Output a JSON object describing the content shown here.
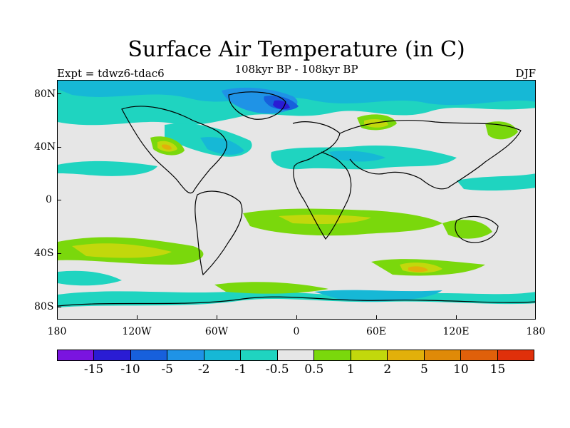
{
  "title": "Surface Air Temperature (in C)",
  "subtitle": "108kyr BP - 108kyr BP",
  "experiment": "Expt = tdwz6-tdac6",
  "season": "DJF",
  "lat_labels": [
    "80N",
    "40N",
    "0",
    "40S",
    "80S"
  ],
  "lon_labels": [
    "180",
    "120W",
    "60W",
    "0",
    "60E",
    "120E",
    "180"
  ],
  "colorbar": {
    "colors": [
      "#7a14e0",
      "#2a1cd4",
      "#1760dc",
      "#1f93e6",
      "#16b8d6",
      "#1fd4c0",
      "#e6e6e6",
      "#7ad80c",
      "#c2d80c",
      "#e2b00a",
      "#e08a08",
      "#e0600a",
      "#e0300a"
    ],
    "labels": [
      "-15",
      "-10",
      "-5",
      "-2",
      "-1",
      "-0.5",
      "0.5",
      "1",
      "2",
      "5",
      "10",
      "15"
    ]
  },
  "colors": {
    "background_land_neutral": "#e6e6e6",
    "coastline": "#000000"
  }
}
